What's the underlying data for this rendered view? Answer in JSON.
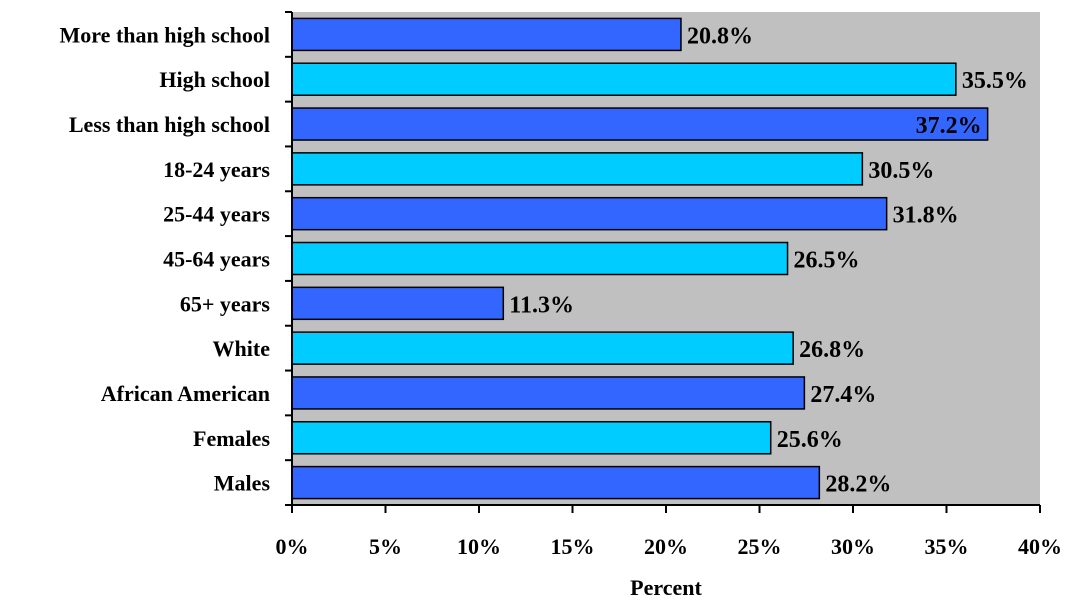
{
  "chart_data": {
    "type": "bar",
    "orientation": "horizontal",
    "categories": [
      "More than high school",
      "High school",
      "Less than high school",
      "18-24 years",
      "25-44 years",
      "45-64 years",
      "65+ years",
      "White",
      "African American",
      "Females",
      "Males"
    ],
    "values": [
      20.8,
      35.5,
      37.2,
      30.5,
      31.8,
      26.5,
      11.3,
      26.8,
      27.4,
      25.6,
      28.2
    ],
    "value_labels": [
      "20.8%",
      "35.5%",
      "37.2%",
      "30.5%",
      "31.8%",
      "26.5%",
      "11.3%",
      "26.8%",
      "27.4%",
      "25.6%",
      "28.2%"
    ],
    "xlabel": "Percent",
    "ylabel": "",
    "xlim": [
      0,
      40
    ],
    "xticks": [
      0,
      5,
      10,
      15,
      20,
      25,
      30,
      35,
      40
    ],
    "xtick_labels": [
      "0%",
      "5%",
      "10%",
      "15%",
      "20%",
      "25%",
      "30%",
      "35%",
      "40%"
    ],
    "grid": false,
    "legend": "none",
    "colors": {
      "plot_background": "#c0c0c0",
      "bar_dark": "#3366ff",
      "bar_light": "#00ccff",
      "bar_outline": "#000000"
    }
  }
}
